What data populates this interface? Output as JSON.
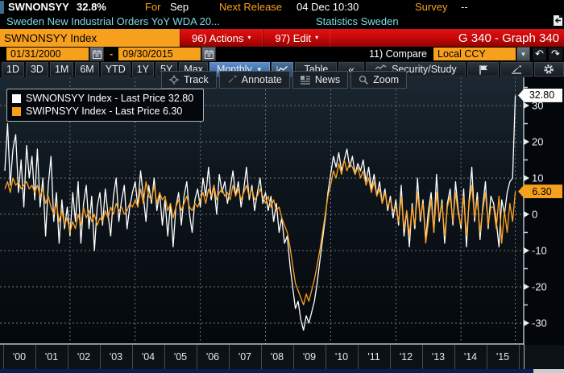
{
  "colors": {
    "amber": "#f7a01e",
    "cyan": "#7adde6",
    "red_bar": "#c30707",
    "white_line": "#ffffff",
    "orange_line": "#ffa11e",
    "grid": "#6d747b",
    "freq_blue": "#30609d",
    "bottom_blue": "#0a1e52"
  },
  "titlebar": {
    "ticker": "SWNONSYY",
    "value": "32.8%",
    "for_label": "For",
    "for_value": "Sep",
    "next_release_label": "Next Release",
    "next_release_value": "04 Dec 10:30",
    "survey_label": "Survey",
    "survey_value": "--"
  },
  "subtitle": {
    "description": "Sweden New Industrial Orders YoY WDA 20...",
    "source": "Statistics Sweden"
  },
  "command_bar": {
    "security_input": "SWNONSYY Index",
    "actions_label": "96) Actions",
    "edit_label": "97) Edit",
    "graph_label": "G 340 - Graph 340"
  },
  "range_bar": {
    "start_date": "01/31/2000",
    "separator": "-",
    "end_date": "09/30/2015",
    "compare_label": "11) Compare",
    "currency_value": "Local CCY"
  },
  "period_bar": {
    "periods": [
      "1D",
      "3D",
      "1M",
      "6M",
      "YTD",
      "1Y",
      "5Y",
      "Max"
    ],
    "frequency": "Monthly",
    "table_label": "Table",
    "collapse_label": "«",
    "security_study_label": "Security/Study"
  },
  "chart_toolbar": {
    "buttons": [
      "Track",
      "Annotate",
      "News",
      "Zoom"
    ]
  },
  "legend": {
    "items": [
      {
        "swatch": "#ffffff",
        "label": "SWNONSYY Index - Last Price 32.80"
      },
      {
        "swatch": "#f7a01e",
        "label": "SWIPNSYY Index - Last Price  6.30"
      }
    ]
  },
  "badges": [
    {
      "text": "32.80",
      "value": 32.8,
      "bg": "#ffffff"
    },
    {
      "text": "6.30",
      "value": 6.3,
      "bg": "#f7a01e"
    }
  ],
  "chart_data": {
    "type": "line",
    "title": "Sweden New Industrial Orders YoY WDA",
    "frequency": "monthly",
    "x_start": "2000-01",
    "x_end": "2015-09",
    "x_tick_labels": [
      "'00",
      "'01",
      "'02",
      "'03",
      "'04",
      "'05",
      "'06",
      "'07",
      "'08",
      "'09",
      "'10",
      "'11",
      "'12",
      "'13",
      "'14",
      "'15"
    ],
    "yticks": [
      30,
      20,
      10,
      0,
      -10,
      -20,
      -30
    ],
    "minor_yticks": [
      35,
      25,
      15,
      5,
      -5,
      -15,
      -25
    ],
    "ylim": [
      -36,
      37
    ],
    "grid": "dashed",
    "legend_position": "top-left",
    "series": [
      {
        "name": "SWNONSYY Index",
        "last_price": 32.8,
        "color": "#ffffff",
        "values": [
          12,
          25,
          8,
          18,
          22,
          6,
          15,
          2,
          19,
          10,
          16,
          4,
          18,
          2,
          10,
          -6,
          8,
          16,
          -2,
          6,
          -8,
          4,
          -4,
          2,
          -6,
          6,
          -2,
          9,
          -8,
          3,
          8,
          -4,
          5,
          -10,
          2,
          6,
          -3,
          7,
          0,
          -6,
          5,
          10,
          -2,
          4,
          8,
          -4,
          2,
          6,
          9,
          2,
          12,
          5,
          -2,
          8,
          3,
          10,
          1,
          6,
          -3,
          4,
          -6,
          3,
          -9,
          2,
          6,
          -3,
          5,
          9,
          0,
          -5,
          4,
          7,
          2,
          10,
          5,
          13,
          4,
          8,
          0,
          11,
          6,
          9,
          3,
          7,
          12,
          5,
          9,
          2,
          7,
          13,
          4,
          8,
          1,
          6,
          10,
          3,
          6,
          1,
          5,
          -2,
          3,
          -5,
          -1,
          -8,
          -6,
          -14,
          -20,
          -26,
          -24,
          -29,
          -32,
          -28,
          -30,
          -27,
          -24,
          -19,
          -13,
          -7,
          -1,
          6,
          11,
          16,
          13,
          17,
          12,
          15,
          18,
          13,
          16,
          11,
          14,
          12,
          15,
          9,
          13,
          7,
          11,
          5,
          9,
          3,
          7,
          1,
          5,
          -1,
          4,
          -3,
          8,
          -6,
          1,
          -9,
          3,
          -4,
          10,
          -2,
          4,
          -7,
          1,
          6,
          -5,
          11,
          -2,
          4,
          -8,
          3,
          7,
          -3,
          9,
          1,
          -4,
          7,
          -9,
          4,
          13,
          -2,
          6,
          -7,
          2,
          9,
          -4,
          5,
          3,
          -2,
          -9,
          4,
          0,
          6,
          9,
          10,
          32.8
        ]
      },
      {
        "name": "SWIPNSYY Index",
        "last_price": 6.3,
        "color": "#ffa11e",
        "values": [
          7,
          9,
          6,
          10,
          8,
          9,
          7,
          8,
          9,
          7,
          8,
          6,
          8,
          5,
          7,
          3,
          5,
          2,
          0,
          3,
          -2,
          1,
          -3,
          -1,
          -5,
          -2,
          -4,
          0,
          -3,
          2,
          -1,
          1,
          -2,
          0,
          -3,
          -1,
          -2,
          1,
          -1,
          2,
          0,
          3,
          1,
          2,
          0,
          1,
          3,
          2,
          4,
          2,
          7,
          3,
          9,
          5,
          4,
          8,
          3,
          6,
          4,
          5,
          1,
          3,
          -1,
          2,
          4,
          1,
          3,
          5,
          2,
          1,
          3,
          2,
          4,
          6,
          3,
          7,
          5,
          8,
          4,
          6,
          7,
          5,
          6,
          4,
          8,
          5,
          7,
          4,
          6,
          8,
          5,
          7,
          4,
          5,
          7,
          5,
          3,
          5,
          2,
          4,
          1,
          2,
          -1,
          -3,
          -5,
          -9,
          -14,
          -19,
          -21,
          -23,
          -25,
          -22,
          -24,
          -21,
          -18,
          -14,
          -10,
          -5,
          0,
          5,
          8,
          12,
          10,
          14,
          11,
          15,
          12,
          14,
          13,
          11,
          13,
          10,
          12,
          8,
          10,
          6,
          9,
          5,
          7,
          3,
          6,
          2,
          4,
          1,
          2,
          -2,
          5,
          -4,
          1,
          -6,
          2,
          -3,
          6,
          -1,
          3,
          -8,
          -2,
          4,
          -5,
          6,
          -1,
          3,
          -6,
          2,
          5,
          -2,
          6,
          0,
          -3,
          5,
          -6,
          3,
          8,
          -1,
          4,
          -5,
          1,
          6,
          -3,
          2,
          2,
          -4,
          5,
          -8,
          1,
          -5,
          3,
          -2,
          6.3
        ]
      }
    ]
  }
}
